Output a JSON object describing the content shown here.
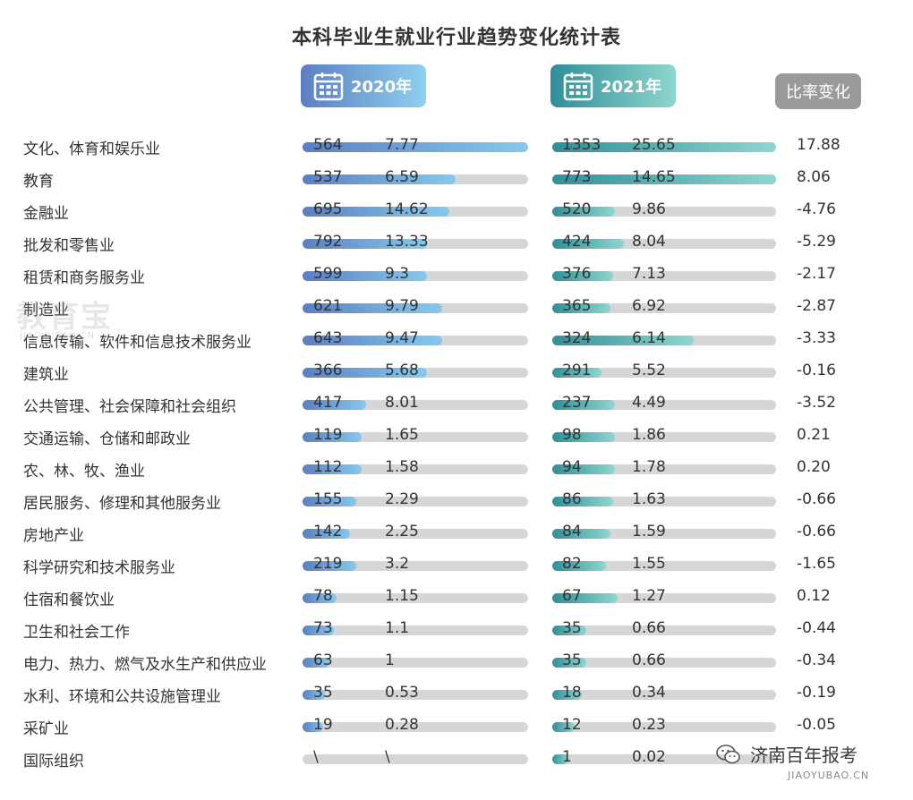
{
  "title": "本科毕业生就业行业趋势变化统计表",
  "headers": {
    "y2020": "2020年",
    "y2021": "2021年",
    "change": "比率变化"
  },
  "watermark": {
    "text": "教育宝",
    "sub": "JIAOYUBAO.CN"
  },
  "brand": {
    "text": "济南百年报考",
    "sub": "JIAOYUBAO.CN"
  },
  "chart_data": {
    "type": "bar",
    "title": "本科毕业生就业行业趋势变化统计表",
    "categories": [
      "文化、体育和娱乐业",
      "教育",
      "金融业",
      "批发和零售业",
      "租赁和商务服务业",
      "制造业",
      "信息传输、软件和信息技术服务业",
      "建筑业",
      "公共管理、社会保障和社会组织",
      "交通运输、仓储和邮政业",
      "农、林、牧、渔业",
      "居民服务、修理和其他服务业",
      "房地产业",
      "科学研究和技术服务业",
      "住宿和餐饮业",
      "卫生和社会工作",
      "电力、热力、燃气及水生产和供应业",
      "水利、环境和公共设施管理业",
      "采矿业",
      "国际组织"
    ],
    "series": [
      {
        "name": "2020年",
        "counts": [
          "564",
          "537",
          "695",
          "792",
          "599",
          "621",
          "643",
          "366",
          "417",
          "119",
          "112",
          "155",
          "142",
          "219",
          "78",
          "73",
          "63",
          "35",
          "19",
          "\\"
        ],
        "values": [
          "7.77",
          "6.59",
          "14.62",
          "13.33",
          "9.3",
          "9.79",
          "9.47",
          "5.68",
          "8.01",
          "1.65",
          "1.58",
          "2.29",
          "2.25",
          "3.2",
          "1.15",
          "1.1",
          "1",
          "0.53",
          "0.28",
          "\\"
        ],
        "fill": [
          1.0,
          0.68,
          0.65,
          0.55,
          0.55,
          0.62,
          0.62,
          0.55,
          0.28,
          0.26,
          0.26,
          0.24,
          0.21,
          0.24,
          0.15,
          0.14,
          0.12,
          0.1,
          0.09,
          0.0
        ]
      },
      {
        "name": "2021年",
        "counts": [
          "1353",
          "773",
          "520",
          "424",
          "376",
          "365",
          "324",
          "291",
          "237",
          "98",
          "94",
          "86",
          "84",
          "82",
          "67",
          "35",
          "35",
          "18",
          "12",
          "1"
        ],
        "values": [
          "25.65",
          "14.65",
          "9.86",
          "8.04",
          "7.13",
          "6.92",
          "6.14",
          "5.52",
          "4.49",
          "1.86",
          "1.78",
          "1.63",
          "1.59",
          "1.55",
          "1.27",
          "0.66",
          "0.66",
          "0.34",
          "0.23",
          "0.02"
        ],
        "fill": [
          1.0,
          1.0,
          0.28,
          0.32,
          0.27,
          0.26,
          0.63,
          0.22,
          0.28,
          0.28,
          0.28,
          0.27,
          0.26,
          0.24,
          0.29,
          0.15,
          0.15,
          0.13,
          0.1,
          0.07
        ]
      }
    ],
    "change": [
      "17.88",
      "8.06",
      "-4.76",
      "-5.29",
      "-2.17",
      "-2.87",
      "-3.33",
      "-0.16",
      "-3.52",
      "0.21",
      "0.20",
      "-0.66",
      "-0.66",
      "-1.65",
      "0.12",
      "-0.44",
      "-0.34",
      "-0.19",
      "-0.05",
      ""
    ],
    "legend": "top"
  },
  "colors": {
    "accent_2020": "#5b7fc1",
    "accent_2021": "#2f8f99",
    "track": "#d6d6d8",
    "change_badge": "#9a9a9a"
  }
}
